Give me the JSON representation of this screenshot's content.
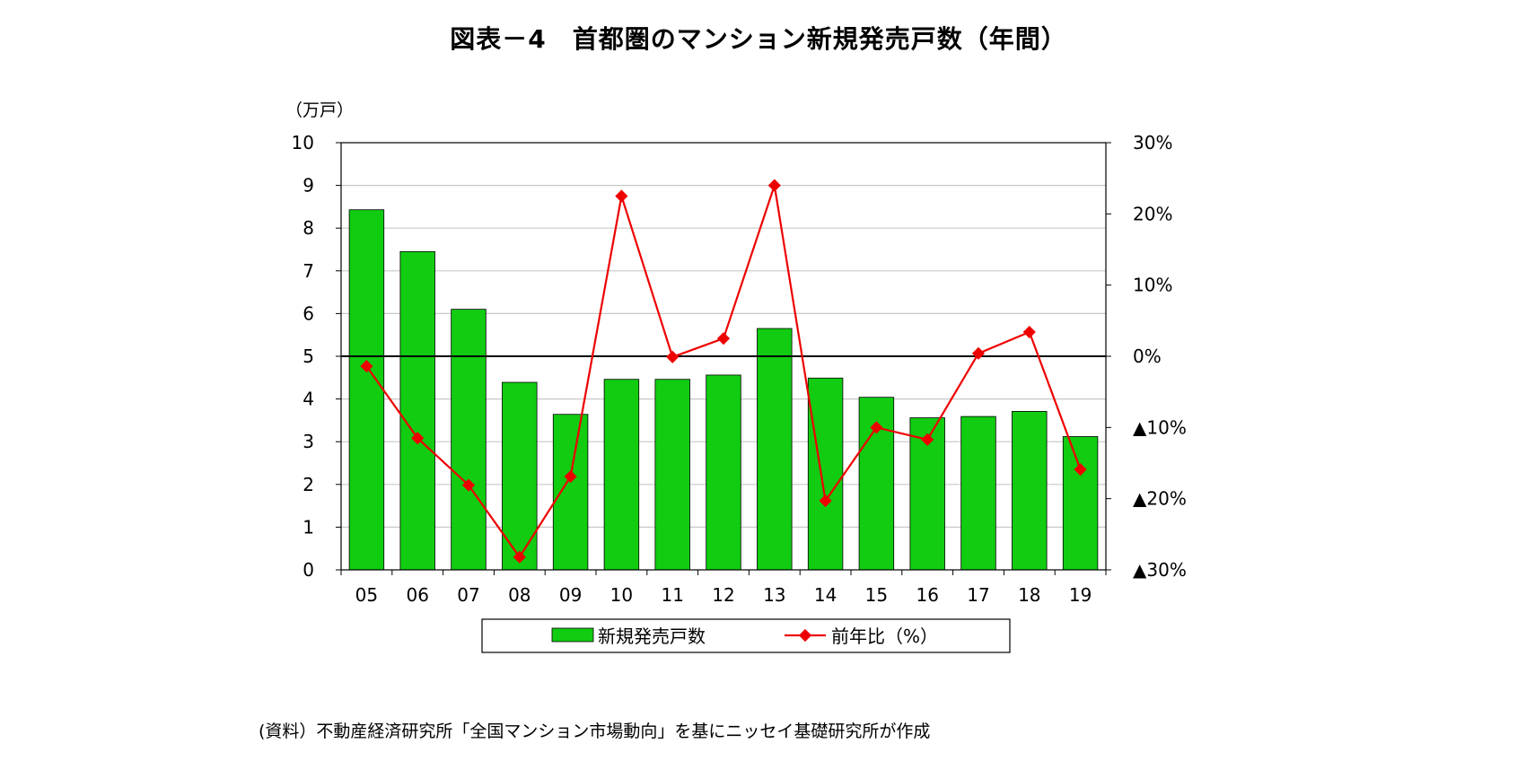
{
  "chart_data": {
    "type": "bar",
    "title": "図表－4　首都圏のマンション新規発売戸数（年間）",
    "categories": [
      "05",
      "06",
      "07",
      "08",
      "09",
      "10",
      "11",
      "12",
      "13",
      "14",
      "15",
      "16",
      "17",
      "18",
      "19"
    ],
    "series": [
      {
        "name": "新規発売戸数",
        "type": "bar",
        "axis": "left",
        "color": "#11CC11",
        "values": [
          8.43,
          7.45,
          6.1,
          4.39,
          3.64,
          4.46,
          4.46,
          4.56,
          5.65,
          4.49,
          4.04,
          3.56,
          3.59,
          3.71,
          3.12
        ]
      },
      {
        "name": "前年比（%）",
        "type": "line",
        "axis": "right",
        "color": "#EE0000",
        "values": [
          -1.4,
          -11.5,
          -18.1,
          -28.2,
          -16.9,
          22.5,
          -0.1,
          2.5,
          24.0,
          -20.3,
          -10.0,
          -11.7,
          0.4,
          3.4,
          -15.9
        ]
      }
    ],
    "y_left": {
      "unit_label": "（万戸）",
      "ylim": [
        0,
        10
      ],
      "ticks": [
        "0",
        "1",
        "2",
        "3",
        "4",
        "5",
        "6",
        "7",
        "8",
        "9",
        "10"
      ]
    },
    "y_right": {
      "ylim": [
        -30,
        30
      ],
      "tick_values": [
        -30,
        -20,
        -10,
        0,
        10,
        20,
        30
      ],
      "ticks": [
        "▲30%",
        "▲20%",
        "▲10%",
        "0%",
        "10%",
        "20%",
        "30%"
      ]
    },
    "grid": true,
    "legend": "bottom"
  },
  "source_note": "(資料）不動産経済研究所「全国マンション市場動向」を基にニッセイ基礎研究所が作成"
}
